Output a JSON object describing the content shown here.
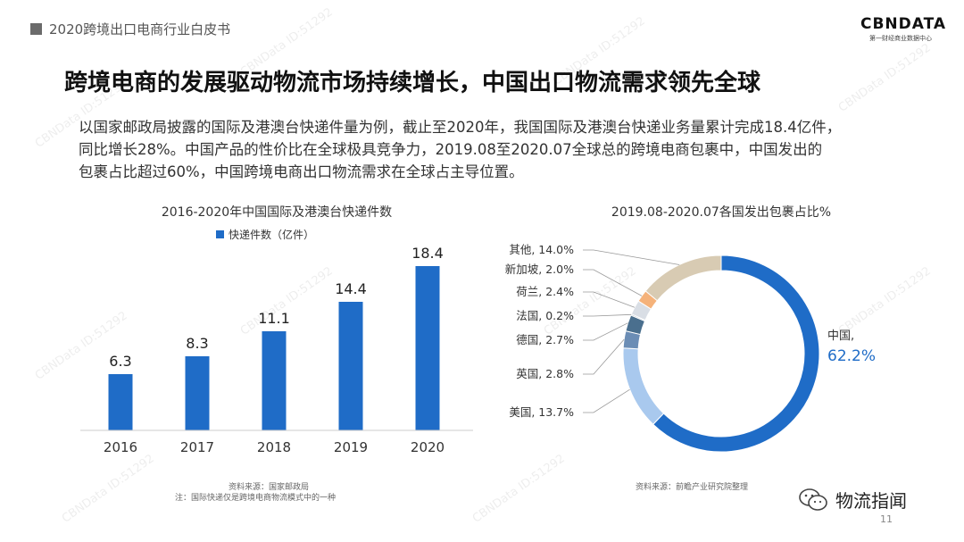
{
  "header": {
    "label": "2020跨境出口电商行业白皮书"
  },
  "logo": {
    "main": "CBNDATA",
    "sub": "第一财经商业数据中心"
  },
  "title": "跨境电商的发展驱动物流市场持续增长，中国出口物流需求领先全球",
  "paragraph": [
    "以国家邮政局披露的国际及港澳台快递件量为例，截止至2020年，我国国际及港澳台快递业务量累计完成18.4亿件，",
    "同比增长28%。中国产品的性价比在全球极具竞争力，2019.08至2020.07全球总的跨境电商包裹中，中国发出的",
    "包裹占比超过60%，中国跨境电商出口物流需求在全球占主导位置。"
  ],
  "watermark_text": "CBNData ID:51292",
  "chart_data": [
    {
      "type": "bar",
      "title": "2016-2020年中国国际及港澳台快递件数",
      "legend": "快递件数（亿件）",
      "legend_position": "top",
      "categories": [
        "2016",
        "2017",
        "2018",
        "2019",
        "2020"
      ],
      "values": [
        6.3,
        8.3,
        11.1,
        14.4,
        18.4
      ],
      "labels": [
        "6.3",
        "8.3",
        "11.1",
        "14.4",
        "18.4"
      ],
      "ylim": [
        0,
        20
      ],
      "grid": false,
      "color": "#1f6cc7"
    },
    {
      "type": "pie",
      "title": "2019.08-2020.07各国发出包裹占比%",
      "slices": [
        {
          "label": "中国",
          "value": 62.2,
          "display": "62.2%",
          "color": "#1f6cc7"
        },
        {
          "label": "美国",
          "value": 13.7,
          "display": "美国, 13.7%",
          "color": "#a9c9ee"
        },
        {
          "label": "英国",
          "value": 2.8,
          "display": "英国, 2.8%",
          "color": "#6b8db5"
        },
        {
          "label": "德国",
          "value": 2.7,
          "display": "德国, 2.7%",
          "color": "#4a6f8e"
        },
        {
          "label": "法国",
          "value": 0.2,
          "display": "法国, 0.2%",
          "color": "#9aa7b4"
        },
        {
          "label": "荷兰",
          "value": 2.4,
          "display": "荷兰, 2.4%",
          "color": "#d9dee5"
        },
        {
          "label": "新加坡",
          "value": 2.0,
          "display": "新加坡, 2.0%",
          "color": "#f5b27a"
        },
        {
          "label": "其他",
          "value": 14.0,
          "display": "其他, 14.0%",
          "color": "#d8cbb3"
        }
      ],
      "china_label": "中国,",
      "china_value": "62.2%"
    }
  ],
  "sources": {
    "left": [
      "资料来源：国家邮政局",
      "注：国际快递仅是跨境电商物流模式中的一种"
    ],
    "right": "资料来源：前瞻产业研究院整理"
  },
  "wechat": {
    "label": "物流指闻"
  },
  "page_number": "11"
}
